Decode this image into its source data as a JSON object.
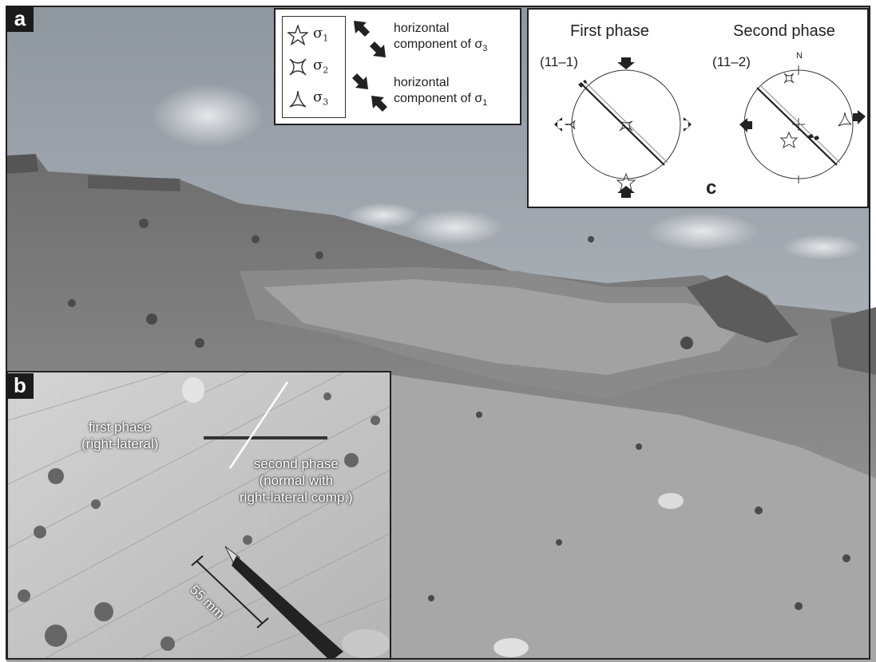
{
  "labels": {
    "a": "a",
    "b": "b",
    "c": "c"
  },
  "legend": {
    "sigma1": "σ",
    "sigma1_sub": "1",
    "sigma2": "σ",
    "sigma2_sub": "2",
    "sigma3": "σ",
    "sigma3_sub": "3",
    "hc3_line1": "horizontal",
    "hc3_line2": "component of σ",
    "hc3_sub": "3",
    "hc1_line1": "horizontal",
    "hc1_line2": "component of σ",
    "hc1_sub": "1"
  },
  "stereonets": {
    "first_title": "First phase",
    "first_code": "(11–1)",
    "second_title": "Second phase",
    "second_code": "(11–2)",
    "north": "N"
  },
  "inset_b": {
    "first_phase_1": "first phase",
    "first_phase_2": "(right-lateral)",
    "second_phase_1": "second phase",
    "second_phase_2": "(normal with",
    "second_phase_3": "right-lateral comp.)",
    "scale": "55 mm"
  },
  "colors": {
    "frame": "#1b1b1b",
    "sky": "#9aa2ab",
    "hill": "#6f6f6f"
  }
}
